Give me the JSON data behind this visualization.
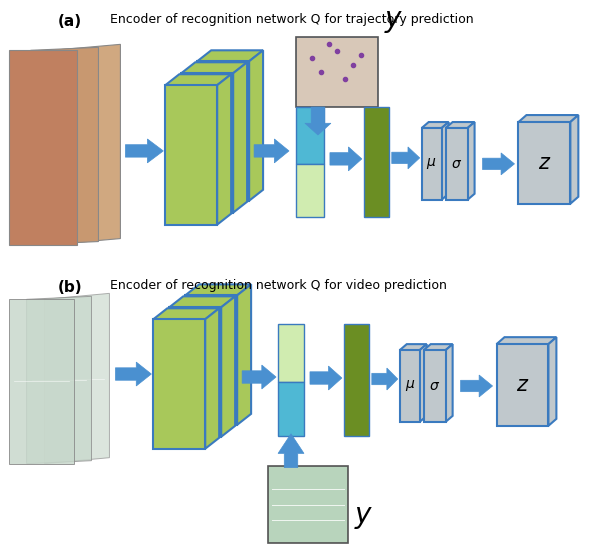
{
  "fig_width": 5.92,
  "fig_height": 5.54,
  "dpi": 100,
  "bg": "#ffffff",
  "title_a": "Encoder of recognition network Q for trajectory prediction",
  "title_b": "Encoder of recognition network Q for video prediction",
  "label_a": "(a)",
  "label_b": "(b)",
  "green_light": "#a8c85a",
  "green_dark": "#6b8e23",
  "blue_edge": "#3a7abf",
  "cyan_color": "#4fb8d4",
  "cyan_light": "#d0ecb0",
  "gray_face": "#c0c8cc",
  "gray_edge": "#3a7abf",
  "arrow_color": "#4a90d0",
  "arrow_edge": "#4a90d0"
}
